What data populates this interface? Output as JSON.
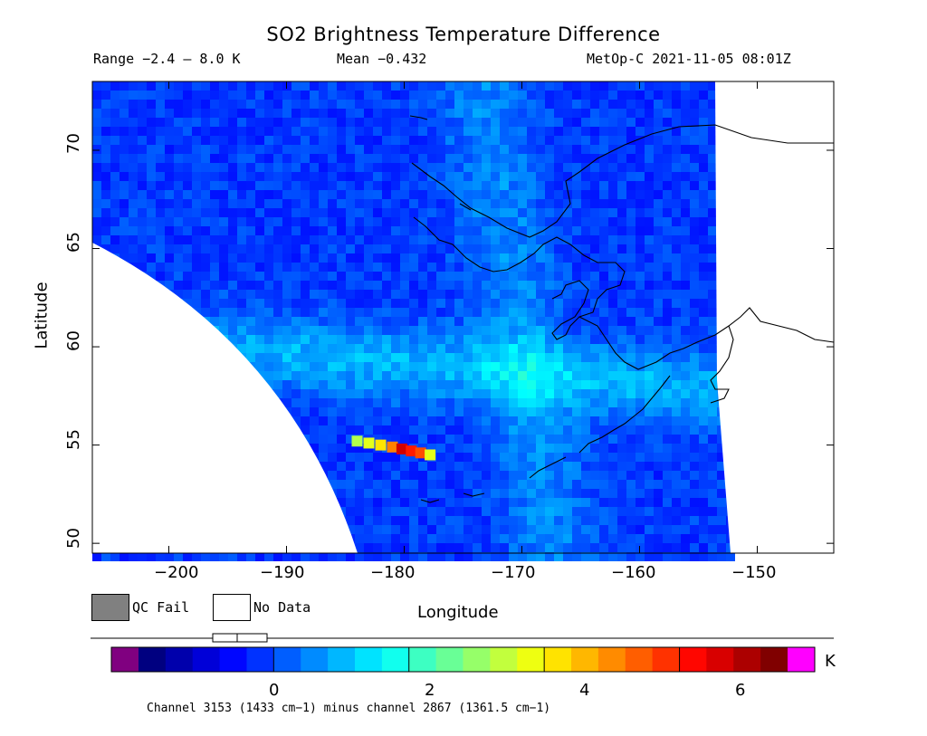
{
  "title": "SO2 Brightness Temperature Difference",
  "range_text": "Range −2.4 – 8.0 K",
  "mean_text": "Mean −0.432",
  "satellite_time_text": "MetOp-C 2021-11-05 08:01Z",
  "map": {
    "xlabel": "Longitude",
    "ylabel": "Latitude",
    "x_ticks": [
      "−200",
      "−190",
      "−180",
      "−170",
      "−160",
      "−150"
    ],
    "y_ticks": [
      "70",
      "65",
      "60",
      "55",
      "50"
    ],
    "lon_range": [
      -206.5,
      -143.5
    ],
    "lat_range": [
      49.5,
      73.5
    ],
    "so2_plume": {
      "lon_range": [
        -184.5,
        -177.5
      ],
      "lat_range": [
        54.5,
        55.5
      ],
      "max_K": 6.5
    },
    "background_K": -0.432
  },
  "legend": {
    "qc_fail_label": "QC Fail",
    "no_data_label": "No Data",
    "qc_fail_color": "#808080",
    "no_data_color": "#ffffff"
  },
  "colorbar": {
    "unit": "K",
    "ticks": [
      "0",
      "2",
      "4",
      "6"
    ],
    "tick_values": [
      0,
      2,
      4,
      6
    ],
    "vmin": -2.4,
    "vmax": 8.0,
    "under_color": "#800080",
    "over_color": "#ff00ff",
    "footnote": "Channel 3153 (1433 cm−1) minus channel 2867 (1361.5 cm−1)"
  }
}
